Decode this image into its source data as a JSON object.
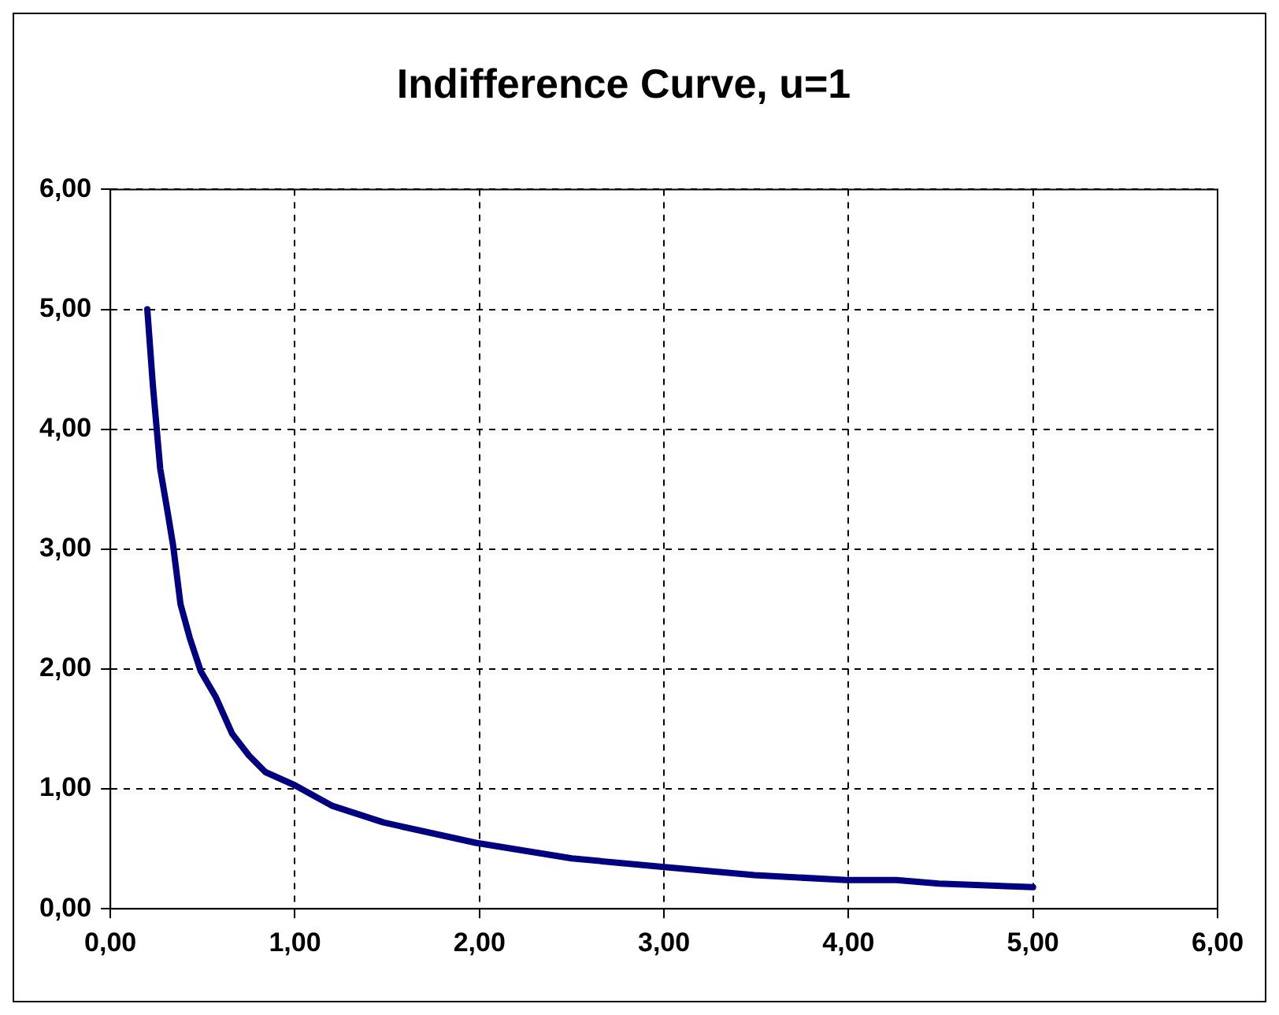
{
  "chart_data": {
    "type": "line",
    "title": "Indifference Curve, u=1",
    "x": [
      0.2,
      0.23,
      0.27,
      0.31,
      0.34,
      0.38,
      0.43,
      0.49,
      0.57,
      0.66,
      0.75,
      0.84,
      1.0,
      1.2,
      1.48,
      1.98,
      2.5,
      2.99,
      3.49,
      3.99,
      4.26,
      4.49,
      5.0
    ],
    "series": [
      {
        "color": "#000080",
        "values": [
          5.0,
          4.37,
          3.67,
          3.31,
          3.03,
          2.54,
          2.26,
          1.98,
          1.77,
          1.46,
          1.28,
          1.14,
          1.03,
          0.86,
          0.72,
          0.55,
          0.42,
          0.35,
          0.28,
          0.24,
          0.24,
          0.21,
          0.18
        ]
      }
    ],
    "xlim": [
      0,
      6
    ],
    "ylim": [
      0,
      6
    ],
    "xticks": [
      {
        "value": 0,
        "label": "0,00"
      },
      {
        "value": 1,
        "label": "1,00"
      },
      {
        "value": 2,
        "label": "2,00"
      },
      {
        "value": 3,
        "label": "3,00"
      },
      {
        "value": 4,
        "label": "4,00"
      },
      {
        "value": 5,
        "label": "5,00"
      },
      {
        "value": 6,
        "label": "6,00"
      }
    ],
    "yticks": [
      {
        "value": 0,
        "label": "0,00"
      },
      {
        "value": 1,
        "label": "1,00"
      },
      {
        "value": 2,
        "label": "2,00"
      },
      {
        "value": 3,
        "label": "3,00"
      },
      {
        "value": 4,
        "label": "4,00"
      },
      {
        "value": 5,
        "label": "5,00"
      },
      {
        "value": 6,
        "label": "6,00"
      }
    ],
    "grid": true,
    "legend": false,
    "marker": "none",
    "line_style": "solid"
  }
}
